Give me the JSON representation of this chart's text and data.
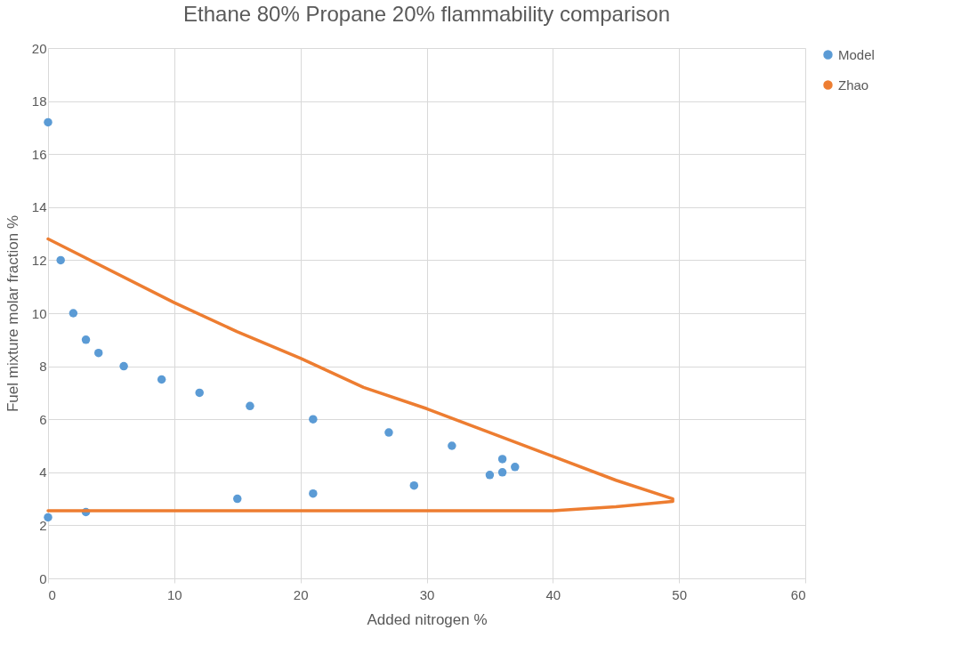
{
  "chart_data": {
    "type": "scatter",
    "title": "Ethane 80% Propane 20% flammability comparison",
    "xlabel": "Added nitrogen %",
    "ylabel": "Fuel mixture molar fraction %",
    "xlim": [
      0,
      60
    ],
    "xticks": [
      0,
      10,
      20,
      30,
      40,
      50,
      60
    ],
    "ylim": [
      0,
      20
    ],
    "yticks": [
      0,
      2,
      4,
      6,
      8,
      10,
      12,
      14,
      16,
      18,
      20
    ],
    "grid": true,
    "legend": "right",
    "series": [
      {
        "name": "Model",
        "color": "#5b9bd5",
        "x": [
          0,
          1,
          2,
          3,
          4,
          6,
          9,
          12,
          16,
          21,
          27,
          32,
          36,
          37,
          35,
          36,
          29,
          21,
          15,
          3,
          0
        ],
        "values": [
          17.2,
          12,
          10,
          9,
          8.5,
          8,
          7.5,
          7,
          6.5,
          6,
          5.5,
          5,
          4.5,
          4.2,
          3.9,
          4,
          3.5,
          3.2,
          3,
          2.5,
          2.3
        ]
      },
      {
        "name": "Zhao",
        "type": "line",
        "color": "#ed7d31",
        "x": [
          0,
          10,
          15,
          20,
          25,
          30,
          35,
          40,
          45,
          49.5,
          49.5,
          45,
          40,
          0
        ],
        "values": [
          12.8,
          10.4,
          9.3,
          8.3,
          7.2,
          6.4,
          5.5,
          4.6,
          3.7,
          3.0,
          2.9,
          2.7,
          2.55,
          2.55
        ]
      }
    ]
  }
}
